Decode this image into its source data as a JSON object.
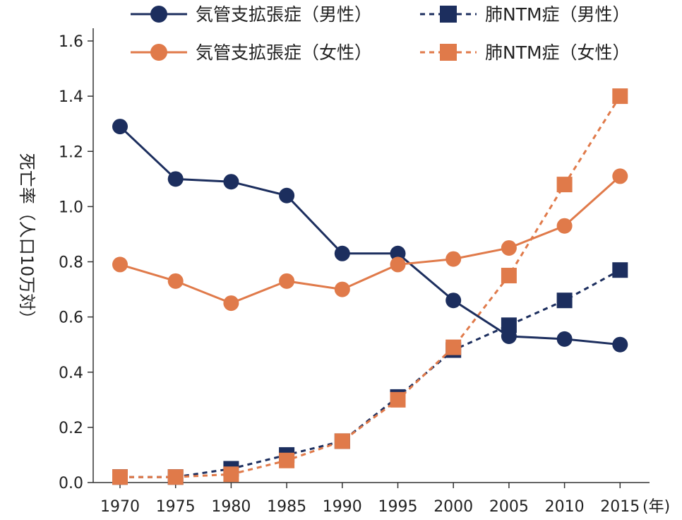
{
  "chart_data": {
    "type": "line",
    "title": "",
    "xlabel": "(年)",
    "ylabel": "死亡率（人口10万対）",
    "ylim": [
      0,
      1.6
    ],
    "yticks": [
      "0.0",
      "0.2",
      "0.4",
      "0.6",
      "0.8",
      "1.0",
      "1.2",
      "1.4",
      "1.6"
    ],
    "categories": [
      "1970",
      "1975",
      "1980",
      "1985",
      "1990",
      "1995",
      "2000",
      "2005",
      "2010",
      "2015"
    ],
    "grid": false,
    "legend_position": "top",
    "series": [
      {
        "name": "気管支拡張症（男性）",
        "marker": "circle",
        "line_style": "solid",
        "color": "#1c2e5e",
        "values": [
          1.29,
          1.1,
          1.09,
          1.04,
          0.83,
          0.83,
          0.66,
          0.53,
          0.52,
          0.5
        ]
      },
      {
        "name": "気管支拡張症（女性）",
        "marker": "circle",
        "line_style": "solid",
        "color": "#e07a4a",
        "values": [
          0.79,
          0.73,
          0.65,
          0.73,
          0.7,
          0.79,
          0.81,
          0.85,
          0.93,
          1.11
        ]
      },
      {
        "name": "肺NTM症（男性）",
        "marker": "square",
        "line_style": "dashed",
        "color": "#1c2e5e",
        "values": [
          0.02,
          0.02,
          0.05,
          0.1,
          0.15,
          0.31,
          0.48,
          0.57,
          0.66,
          0.77
        ]
      },
      {
        "name": "肺NTM症（女性）",
        "marker": "square",
        "line_style": "dashed",
        "color": "#e07a4a",
        "values": [
          0.02,
          0.02,
          0.03,
          0.08,
          0.15,
          0.3,
          0.49,
          0.75,
          1.08,
          1.4
        ]
      }
    ]
  }
}
